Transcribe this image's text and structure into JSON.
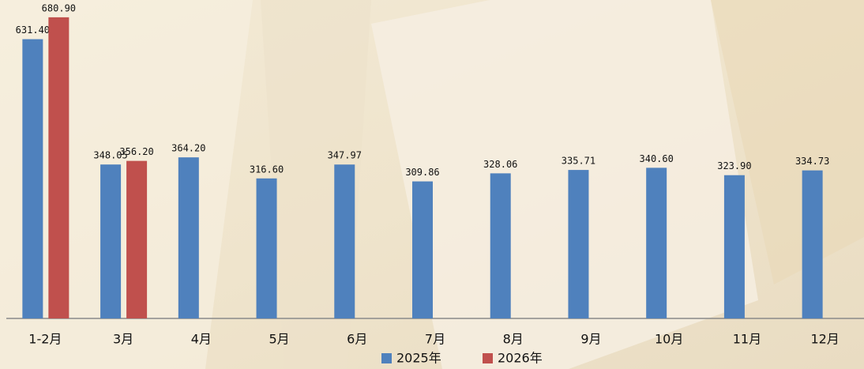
{
  "chart_data": {
    "type": "bar",
    "categories": [
      "1-2月",
      "3月",
      "4月",
      "5月",
      "6月",
      "7月",
      "8月",
      "9月",
      "10月",
      "11月",
      "12月"
    ],
    "series": [
      {
        "name": "2025年",
        "color": "#4f81bd",
        "values": [
          631.4,
          348.05,
          364.2,
          316.6,
          347.97,
          309.86,
          328.06,
          335.71,
          340.6,
          323.9,
          334.73
        ],
        "value_labels": [
          "631.40",
          "348.05",
          "364.20",
          "316.60",
          "347.97",
          "309.86",
          "328.06",
          "335.71",
          "340.60",
          "323.90",
          "334.73"
        ]
      },
      {
        "name": "2026年",
        "color": "#c0504d",
        "values": [
          680.9,
          356.2,
          null,
          null,
          null,
          null,
          null,
          null,
          null,
          null,
          null
        ],
        "value_labels": [
          "680.90",
          "356.20",
          null,
          null,
          null,
          null,
          null,
          null,
          null,
          null,
          null
        ]
      }
    ],
    "ylim": [
      0,
      720
    ]
  }
}
